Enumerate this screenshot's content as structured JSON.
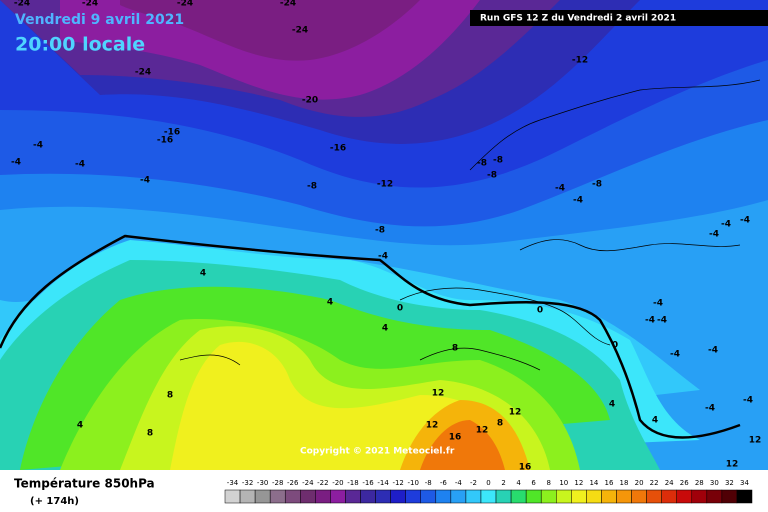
{
  "header": {
    "date": "Vendredi 9 avril 2021",
    "time": "20:00 locale",
    "run": "Run GFS 12 Z du Vendredi 2 avril 2021"
  },
  "copyright": "Copyright © 2021 Meteociel.fr",
  "footer": {
    "title": "Température 850hPa",
    "lead": "(+ 174h)"
  },
  "contour_labels": [
    "-24",
    "-24",
    "-24",
    "-24",
    "-24",
    "-24",
    "-20",
    "-16",
    "-16",
    "-16",
    "-12",
    "-12",
    "-8",
    "-8",
    "-8",
    "-8",
    "-8",
    "-8",
    "-4",
    "-4",
    "-4",
    "-4",
    "-4",
    "-4",
    "-4",
    "-4",
    "-4",
    "-4",
    "-4",
    "-4",
    "-4",
    "-4",
    "-4",
    "-4",
    "-4",
    "0",
    "0",
    "0",
    "4",
    "4",
    "4",
    "4",
    "4",
    "4",
    "8",
    "8",
    "8",
    "8",
    "12",
    "12",
    "12",
    "12",
    "12",
    "12",
    "16",
    "16"
  ],
  "scale": [
    {
      "label": "-34",
      "color": "#d2d2d2"
    },
    {
      "label": "-32",
      "color": "#b4b4b4"
    },
    {
      "label": "-30",
      "color": "#969696"
    },
    {
      "label": "-28",
      "color": "#8c6e8c"
    },
    {
      "label": "-26",
      "color": "#7d4b7d"
    },
    {
      "label": "-24",
      "color": "#6e2d6e"
    },
    {
      "label": "-22",
      "color": "#7a1e82"
    },
    {
      "label": "-20",
      "color": "#8c1ea0"
    },
    {
      "label": "-18",
      "color": "#5a2896"
    },
    {
      "label": "-16",
      "color": "#3c28a0"
    },
    {
      "label": "-14",
      "color": "#2d2db4"
    },
    {
      "label": "-12",
      "color": "#1e1ec8"
    },
    {
      "label": "-10",
      "color": "#1e3cdc"
    },
    {
      "label": "-8",
      "color": "#1e5ae6"
    },
    {
      "label": "-6",
      "color": "#1e82f0"
    },
    {
      "label": "-4",
      "color": "#28a0f5"
    },
    {
      "label": "-2",
      "color": "#32c8fa"
    },
    {
      "label": "0",
      "color": "#3ce6fa"
    },
    {
      "label": "2",
      "color": "#28d2b4"
    },
    {
      "label": "4",
      "color": "#28dc6e"
    },
    {
      "label": "6",
      "color": "#50e628"
    },
    {
      "label": "8",
      "color": "#8cf01e"
    },
    {
      "label": "10",
      "color": "#c8f51e"
    },
    {
      "label": "12",
      "color": "#f0f01e"
    },
    {
      "label": "14",
      "color": "#f5dc14"
    },
    {
      "label": "16",
      "color": "#f5b40a"
    },
    {
      "label": "18",
      "color": "#f5960a"
    },
    {
      "label": "20",
      "color": "#f0780a"
    },
    {
      "label": "22",
      "color": "#e6500a"
    },
    {
      "label": "24",
      "color": "#dc2d0a"
    },
    {
      "label": "26",
      "color": "#c80a0a"
    },
    {
      "label": "28",
      "color": "#a0000a"
    },
    {
      "label": "30",
      "color": "#780008"
    },
    {
      "label": "32",
      "color": "#500005"
    },
    {
      "label": "34",
      "color": "#000000"
    }
  ]
}
